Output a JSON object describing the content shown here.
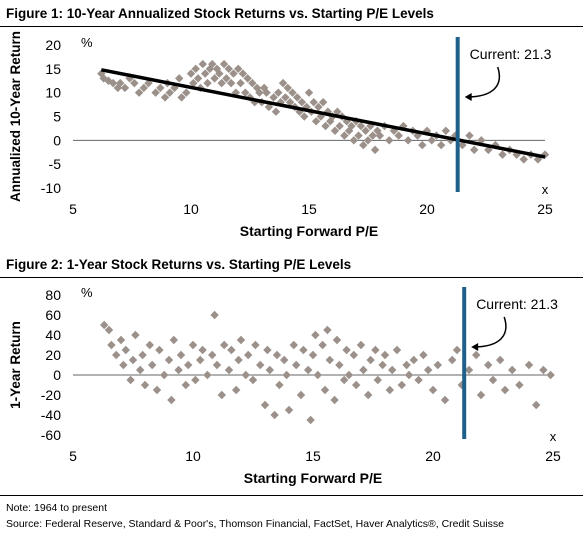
{
  "figure1": {
    "title": "Figure 1: 10-Year Annualized Stock Returns vs. Starting P/E Levels"
  },
  "figure2": {
    "title": "Figure 2: 1-Year Stock Returns vs. Starting P/E Levels"
  },
  "note": "Note: 1964 to present",
  "source": "Source: Federal Reserve, Standard & Poor's, Thomson Financial, FactSet, Haver Analytics®, Credit Suisse",
  "colors": {
    "points": "#9b918a",
    "trend": "#000000",
    "current_line": "#1f5f8b",
    "zero_line": "#666666"
  },
  "chart_data": [
    {
      "type": "scatter",
      "title": "Figure 1: 10-Year Annualized Stock Returns vs. Starting P/E Levels",
      "xlabel": "Starting Forward P/E",
      "ylabel": "Annualized 10-Year Return",
      "x_unit": "x",
      "y_unit": "%",
      "xlim": [
        5,
        25
      ],
      "ylim": [
        -10,
        20
      ],
      "xticks": [
        5,
        10,
        15,
        20,
        25
      ],
      "yticks": [
        -10,
        -5,
        0,
        5,
        10,
        15,
        20
      ],
      "current_pe": 21.3,
      "current_label": "Current: 21.3",
      "trendline": {
        "x": [
          6.2,
          25
        ],
        "y": [
          14.8,
          -3.5
        ]
      },
      "points": [
        [
          6.2,
          14
        ],
        [
          6.3,
          13
        ],
        [
          6.5,
          12.5
        ],
        [
          6.7,
          12
        ],
        [
          6.9,
          11
        ],
        [
          7.0,
          12
        ],
        [
          7.2,
          11
        ],
        [
          7.4,
          13
        ],
        [
          7.6,
          12
        ],
        [
          7.8,
          10
        ],
        [
          8.0,
          11
        ],
        [
          8.2,
          12
        ],
        [
          8.5,
          10
        ],
        [
          8.7,
          11
        ],
        [
          8.9,
          9
        ],
        [
          9.0,
          12
        ],
        [
          9.1,
          10
        ],
        [
          9.3,
          11
        ],
        [
          9.5,
          13
        ],
        [
          9.6,
          9
        ],
        [
          9.8,
          10
        ],
        [
          10.0,
          14
        ],
        [
          10.1,
          12
        ],
        [
          10.2,
          15
        ],
        [
          10.3,
          13
        ],
        [
          10.4,
          11
        ],
        [
          10.5,
          16
        ],
        [
          10.6,
          14
        ],
        [
          10.7,
          12
        ],
        [
          10.8,
          15
        ],
        [
          10.9,
          16
        ],
        [
          11.0,
          13
        ],
        [
          11.1,
          15
        ],
        [
          11.2,
          14
        ],
        [
          11.3,
          12
        ],
        [
          11.4,
          16
        ],
        [
          11.5,
          13
        ],
        [
          11.6,
          15
        ],
        [
          11.7,
          12
        ],
        [
          11.8,
          14
        ],
        [
          11.9,
          10
        ],
        [
          12.0,
          15
        ],
        [
          12.1,
          12
        ],
        [
          12.2,
          14
        ],
        [
          12.3,
          10
        ],
        [
          12.4,
          13
        ],
        [
          12.5,
          9
        ],
        [
          12.6,
          12
        ],
        [
          12.7,
          8
        ],
        [
          12.8,
          11
        ],
        [
          12.9,
          10
        ],
        [
          13.0,
          8
        ],
        [
          13.1,
          11
        ],
        [
          13.2,
          10
        ],
        [
          13.3,
          7
        ],
        [
          13.5,
          9
        ],
        [
          13.6,
          6
        ],
        [
          13.7,
          10
        ],
        [
          13.8,
          8
        ],
        [
          13.9,
          12
        ],
        [
          14.0,
          9
        ],
        [
          14.1,
          11
        ],
        [
          14.2,
          8
        ],
        [
          14.3,
          10
        ],
        [
          14.4,
          7
        ],
        [
          14.5,
          9
        ],
        [
          14.6,
          6
        ],
        [
          14.7,
          8
        ],
        [
          14.8,
          5
        ],
        [
          14.9,
          7
        ],
        [
          15.0,
          10
        ],
        [
          15.1,
          6
        ],
        [
          15.2,
          8
        ],
        [
          15.3,
          4
        ],
        [
          15.4,
          7
        ],
        [
          15.5,
          5
        ],
        [
          15.6,
          8
        ],
        [
          15.7,
          3
        ],
        [
          15.8,
          6
        ],
        [
          15.9,
          4
        ],
        [
          16.0,
          5
        ],
        [
          16.1,
          2
        ],
        [
          16.2,
          6
        ],
        [
          16.3,
          3
        ],
        [
          16.4,
          5
        ],
        [
          16.5,
          1
        ],
        [
          16.6,
          4
        ],
        [
          16.7,
          2
        ],
        [
          16.8,
          3
        ],
        [
          16.9,
          0
        ],
        [
          17.0,
          4
        ],
        [
          17.1,
          1
        ],
        [
          17.2,
          3
        ],
        [
          17.3,
          -1
        ],
        [
          17.4,
          2
        ],
        [
          17.5,
          0
        ],
        [
          17.6,
          3
        ],
        [
          17.7,
          1
        ],
        [
          17.8,
          -2
        ],
        [
          17.9,
          2
        ],
        [
          18.0,
          1
        ],
        [
          18.2,
          3
        ],
        [
          18.4,
          0
        ],
        [
          18.6,
          2
        ],
        [
          18.8,
          1
        ],
        [
          19.0,
          3
        ],
        [
          19.2,
          0
        ],
        [
          19.4,
          2
        ],
        [
          19.6,
          1
        ],
        [
          19.8,
          -1
        ],
        [
          20.0,
          2
        ],
        [
          20.2,
          0
        ],
        [
          20.4,
          1
        ],
        [
          20.6,
          -1
        ],
        [
          20.8,
          2
        ],
        [
          21.0,
          0
        ],
        [
          21.2,
          1
        ],
        [
          21.5,
          -1
        ],
        [
          21.8,
          1
        ],
        [
          22.0,
          -2
        ],
        [
          22.3,
          0
        ],
        [
          22.6,
          -2
        ],
        [
          22.9,
          -1
        ],
        [
          23.2,
          -3
        ],
        [
          23.5,
          -2
        ],
        [
          23.8,
          -3
        ],
        [
          24.1,
          -4
        ],
        [
          24.4,
          -3
        ],
        [
          24.7,
          -4
        ],
        [
          25.0,
          -3
        ]
      ]
    },
    {
      "type": "scatter",
      "title": "Figure 2: 1-Year Stock Returns vs. Starting P/E Levels",
      "xlabel": "Starting Forward P/E",
      "ylabel": "1-Year Return",
      "x_unit": "x",
      "y_unit": "%",
      "xlim": [
        5,
        25
      ],
      "ylim": [
        -60,
        80
      ],
      "xticks": [
        5,
        10,
        15,
        20,
        25
      ],
      "yticks": [
        -60,
        -40,
        -20,
        0,
        20,
        40,
        60,
        80
      ],
      "current_pe": 21.3,
      "current_label": "Current: 21.3",
      "points": [
        [
          6.3,
          50
        ],
        [
          6.5,
          45
        ],
        [
          6.6,
          30
        ],
        [
          6.8,
          20
        ],
        [
          7.0,
          35
        ],
        [
          7.1,
          10
        ],
        [
          7.2,
          25
        ],
        [
          7.4,
          -5
        ],
        [
          7.5,
          15
        ],
        [
          7.6,
          40
        ],
        [
          7.8,
          5
        ],
        [
          7.9,
          20
        ],
        [
          8.0,
          -10
        ],
        [
          8.2,
          30
        ],
        [
          8.3,
          10
        ],
        [
          8.5,
          -15
        ],
        [
          8.6,
          25
        ],
        [
          8.8,
          0
        ],
        [
          9.0,
          15
        ],
        [
          9.1,
          -25
        ],
        [
          9.2,
          35
        ],
        [
          9.4,
          5
        ],
        [
          9.5,
          20
        ],
        [
          9.7,
          -10
        ],
        [
          9.8,
          10
        ],
        [
          10.0,
          30
        ],
        [
          10.1,
          -5
        ],
        [
          10.3,
          15
        ],
        [
          10.4,
          25
        ],
        [
          10.6,
          0
        ],
        [
          10.8,
          20
        ],
        [
          10.9,
          60
        ],
        [
          11.0,
          10
        ],
        [
          11.2,
          -20
        ],
        [
          11.3,
          30
        ],
        [
          11.5,
          5
        ],
        [
          11.6,
          25
        ],
        [
          11.8,
          -15
        ],
        [
          11.9,
          15
        ],
        [
          12.0,
          35
        ],
        [
          12.2,
          0
        ],
        [
          12.3,
          20
        ],
        [
          12.5,
          -5
        ],
        [
          12.6,
          30
        ],
        [
          12.8,
          10
        ],
        [
          13.0,
          -30
        ],
        [
          13.1,
          25
        ],
        [
          13.2,
          5
        ],
        [
          13.4,
          -40
        ],
        [
          13.5,
          20
        ],
        [
          13.6,
          -10
        ],
        [
          13.8,
          15
        ],
        [
          13.9,
          0
        ],
        [
          14.0,
          -35
        ],
        [
          14.2,
          30
        ],
        [
          14.3,
          10
        ],
        [
          14.5,
          -20
        ],
        [
          14.6,
          25
        ],
        [
          14.8,
          5
        ],
        [
          14.9,
          -45
        ],
        [
          15.0,
          20
        ],
        [
          15.1,
          40
        ],
        [
          15.2,
          0
        ],
        [
          15.4,
          30
        ],
        [
          15.5,
          -15
        ],
        [
          15.6,
          45
        ],
        [
          15.7,
          15
        ],
        [
          15.9,
          -25
        ],
        [
          16.0,
          35
        ],
        [
          16.1,
          10
        ],
        [
          16.3,
          -5
        ],
        [
          16.4,
          25
        ],
        [
          16.5,
          0
        ],
        [
          16.7,
          20
        ],
        [
          16.8,
          -10
        ],
        [
          17.0,
          30
        ],
        [
          17.1,
          5
        ],
        [
          17.3,
          -20
        ],
        [
          17.4,
          15
        ],
        [
          17.6,
          25
        ],
        [
          17.7,
          -5
        ],
        [
          17.9,
          10
        ],
        [
          18.0,
          20
        ],
        [
          18.2,
          -15
        ],
        [
          18.3,
          5
        ],
        [
          18.5,
          25
        ],
        [
          18.7,
          -10
        ],
        [
          18.9,
          10
        ],
        [
          19.0,
          0
        ],
        [
          19.2,
          15
        ],
        [
          19.4,
          -5
        ],
        [
          19.6,
          20
        ],
        [
          19.8,
          5
        ],
        [
          20.0,
          -15
        ],
        [
          20.2,
          10
        ],
        [
          20.5,
          -25
        ],
        [
          20.8,
          15
        ],
        [
          21.0,
          25
        ],
        [
          21.2,
          -10
        ],
        [
          21.5,
          5
        ],
        [
          21.8,
          20
        ],
        [
          22.0,
          -20
        ],
        [
          22.3,
          10
        ],
        [
          22.5,
          -5
        ],
        [
          22.8,
          15
        ],
        [
          23.0,
          -15
        ],
        [
          23.3,
          5
        ],
        [
          23.6,
          -10
        ],
        [
          24.0,
          10
        ],
        [
          24.3,
          -30
        ],
        [
          24.6,
          5
        ],
        [
          24.9,
          0
        ]
      ]
    }
  ]
}
